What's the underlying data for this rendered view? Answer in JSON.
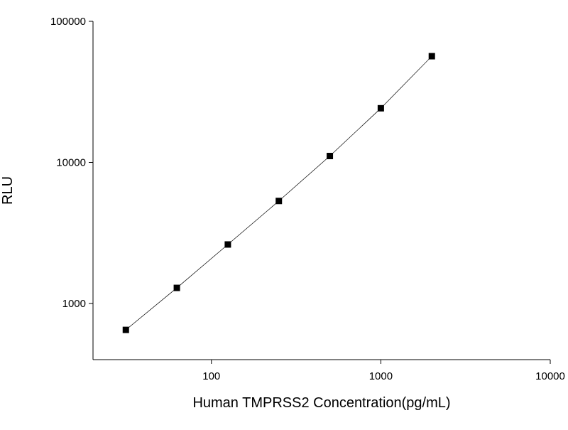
{
  "chart_data": {
    "type": "scatter",
    "x_label": "Human TMPRSS2 Concentration(pg/mL)",
    "y_label": "RLU",
    "x": [
      31.25,
      62.5,
      125,
      250,
      500,
      1000,
      2000
    ],
    "values": [
      650,
      1290,
      2620,
      5330,
      11100,
      24200,
      56600
    ],
    "color": "#000000",
    "line": true,
    "xscale": "log",
    "yscale": "log",
    "xlim": [
      20,
      10000
    ],
    "ylim": [
      400,
      100000
    ],
    "xticks": [
      100,
      1000,
      10000
    ],
    "yticks": [
      1000,
      10000,
      100000
    ]
  }
}
